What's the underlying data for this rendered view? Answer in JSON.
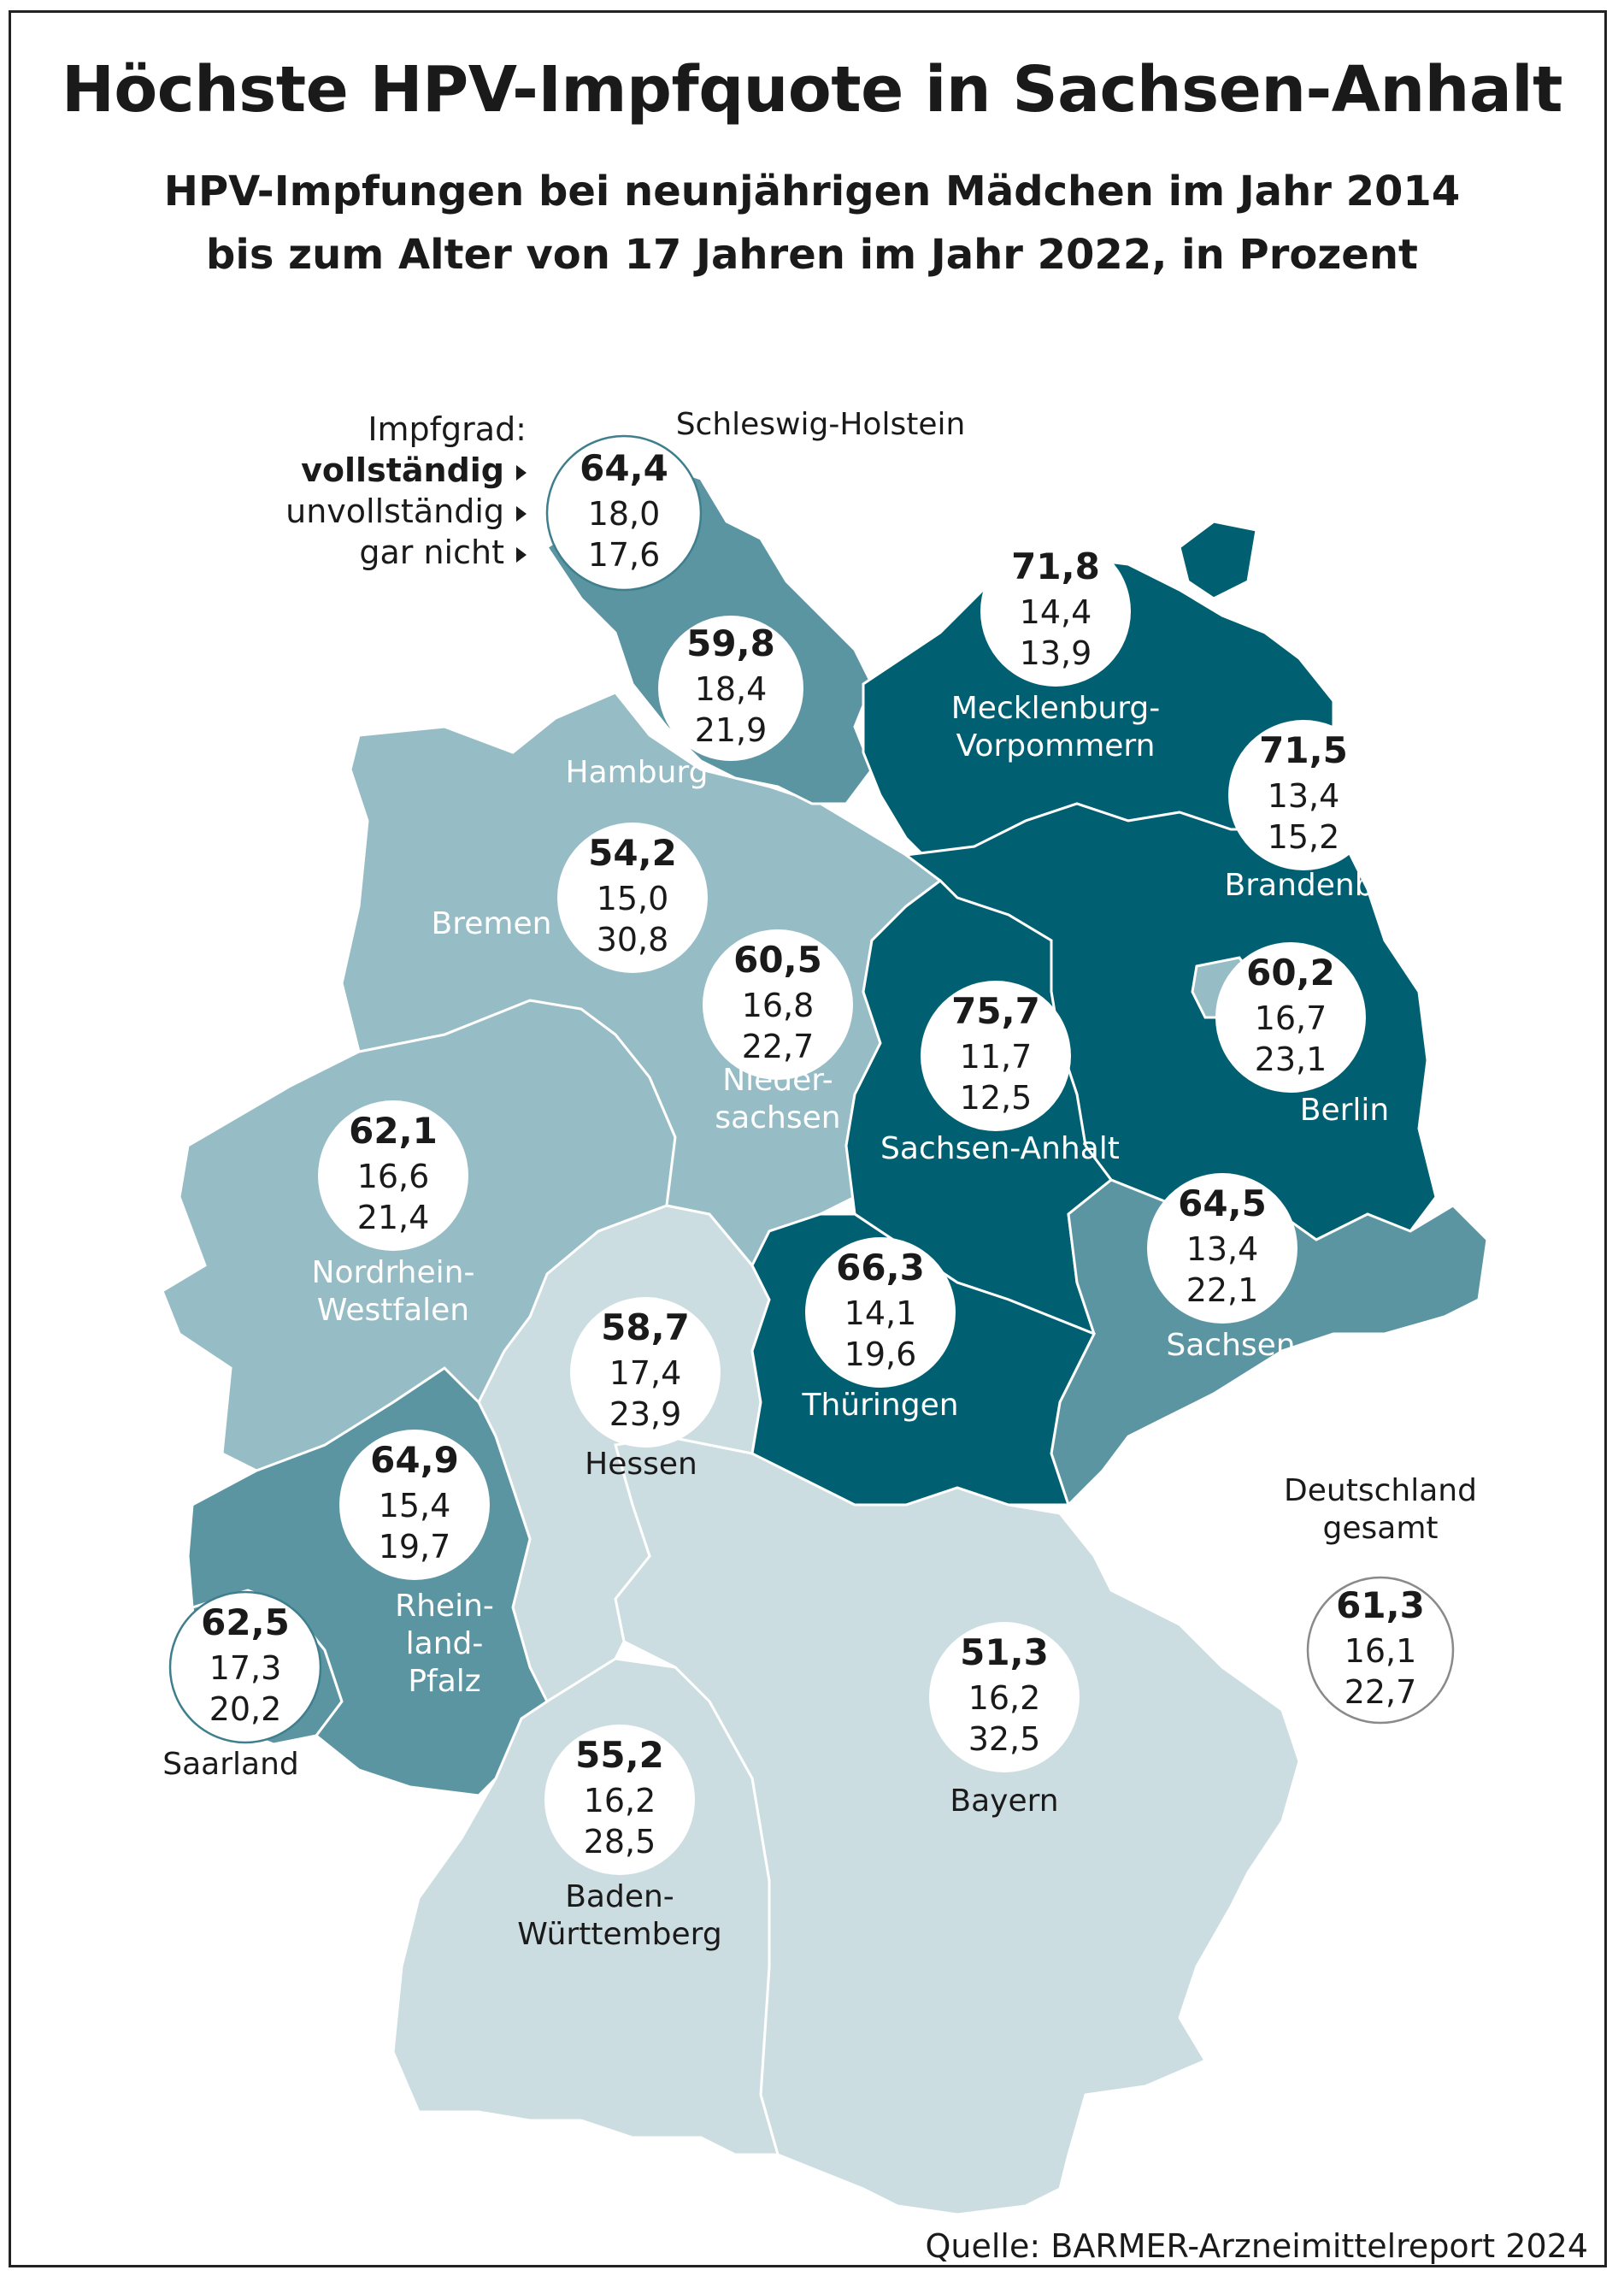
{
  "title": "Höchste HPV-Impfquote in Sachsen-Anhalt",
  "subtitle_line1": "HPV-Impfungen bei neunjährigen Mädchen im Jahr 2014",
  "subtitle_line2": "bis zum Alter von 17 Jahren im Jahr 2022, in Prozent",
  "legend": {
    "heading": "Impfgrad:",
    "items": [
      "vollständig",
      "unvollständig",
      "gar nicht"
    ]
  },
  "source": "Quelle: BARMER-Arzneimittelreport 2024",
  "colors": {
    "darkest": "#005f71",
    "dark": "#5b95a2",
    "medium": "#96bcc5",
    "light": "#ccdde2",
    "circle_outline_teal": "#3f7f8d",
    "circle_outline_gray": "#8a8a8a"
  },
  "regions": [
    {
      "id": "schleswig-holstein",
      "name": "Schleswig-Holstein",
      "values": [
        "64,4",
        "18,0",
        "17,6"
      ]
    },
    {
      "id": "hamburg",
      "name": "Hamburg",
      "values": [
        "59,8",
        "18,4",
        "21,9"
      ]
    },
    {
      "id": "mecklenburg-vorpommern",
      "name": "Mecklenburg-\nVorpommern",
      "values": [
        "71,8",
        "14,4",
        "13,9"
      ]
    },
    {
      "id": "brandenburg",
      "name": "Brandenburg",
      "values": [
        "71,5",
        "13,4",
        "15,2"
      ]
    },
    {
      "id": "bremen",
      "name": "Bremen",
      "values": [
        "54,2",
        "15,0",
        "30,8"
      ]
    },
    {
      "id": "niedersachsen",
      "name": "Nieder-\nsachsen",
      "values": [
        "60,5",
        "16,8",
        "22,7"
      ]
    },
    {
      "id": "sachsen-anhalt",
      "name": "Sachsen-Anhalt",
      "values": [
        "75,7",
        "11,7",
        "12,5"
      ]
    },
    {
      "id": "berlin",
      "name": "Berlin",
      "values": [
        "60,2",
        "16,7",
        "23,1"
      ]
    },
    {
      "id": "nordrhein-westfalen",
      "name": "Nordrhein-\nWestfalen",
      "values": [
        "62,1",
        "16,6",
        "21,4"
      ]
    },
    {
      "id": "sachsen",
      "name": "Sachsen",
      "values": [
        "64,5",
        "13,4",
        "22,1"
      ]
    },
    {
      "id": "thueringen",
      "name": "Thüringen",
      "values": [
        "66,3",
        "14,1",
        "19,6"
      ]
    },
    {
      "id": "hessen",
      "name": "Hessen",
      "values": [
        "58,7",
        "17,4",
        "23,9"
      ]
    },
    {
      "id": "rheinland-pfalz",
      "name": "Rhein-\nland-\nPfalz",
      "values": [
        "64,9",
        "15,4",
        "19,7"
      ]
    },
    {
      "id": "saarland",
      "name": "Saarland",
      "values": [
        "62,5",
        "17,3",
        "20,2"
      ]
    },
    {
      "id": "bayern",
      "name": "Bayern",
      "values": [
        "51,3",
        "16,2",
        "32,5"
      ]
    },
    {
      "id": "baden-wuerttemberg",
      "name": "Baden-\nWürttemberg",
      "values": [
        "55,2",
        "16,2",
        "28,5"
      ]
    },
    {
      "id": "deutschland",
      "name": "Deutschland\ngesamt",
      "values": [
        "61,3",
        "16,1",
        "22,7"
      ]
    }
  ]
}
